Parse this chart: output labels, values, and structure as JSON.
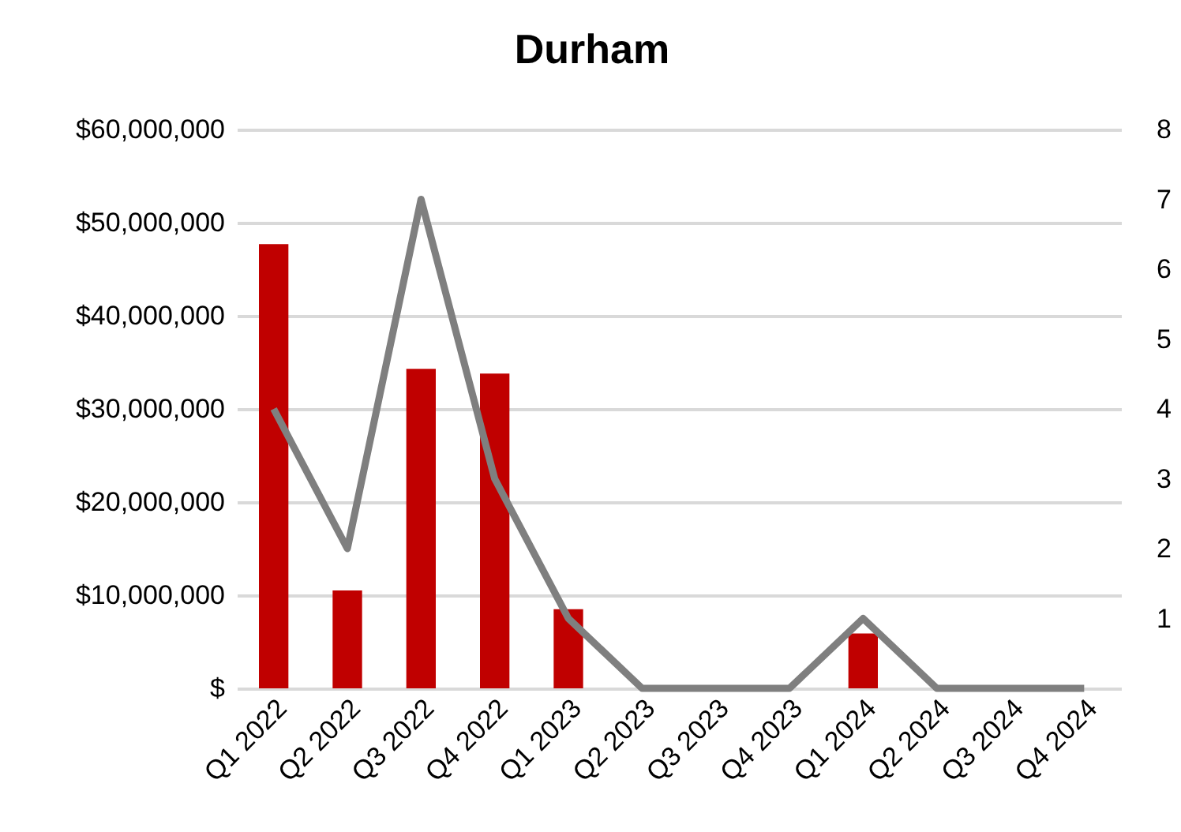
{
  "chart_data": {
    "type": "bar",
    "title": "Durham",
    "categories": [
      "Q1 2022",
      "Q2 2022",
      "Q3 2022",
      "Q4 2022",
      "Q1 2023",
      "Q2 2023",
      "Q3 2023",
      "Q4 2023",
      "Q1 2024",
      "Q2 2024",
      "Q3 2024",
      "Q4 2024"
    ],
    "series": [
      {
        "color": "#c00000",
        "values": [
          47700000,
          10500000,
          34300000,
          33800000,
          8500000,
          0,
          0,
          0,
          5900000,
          0,
          0,
          0
        ]
      },
      {
        "type": "line",
        "axis": "y2",
        "color": "#7f7f7f",
        "values": [
          4,
          2,
          7,
          3,
          1,
          0,
          0,
          0,
          1,
          0,
          0,
          0
        ]
      }
    ],
    "ylim": [
      0,
      60000000
    ],
    "yticks": [
      {
        "value": 0,
        "label": "$"
      },
      {
        "value": 10000000,
        "label": "$10,000,000"
      },
      {
        "value": 20000000,
        "label": "$20,000,000"
      },
      {
        "value": 30000000,
        "label": "$30,000,000"
      },
      {
        "value": 40000000,
        "label": "$40,000,000"
      },
      {
        "value": 50000000,
        "label": "$50,000,000"
      },
      {
        "value": 60000000,
        "label": "$60,000,000"
      }
    ],
    "y2lim": [
      0,
      8
    ],
    "y2ticks": [
      1,
      2,
      3,
      4,
      5,
      6,
      7,
      8
    ],
    "grid": "y",
    "line_style": "solid"
  }
}
